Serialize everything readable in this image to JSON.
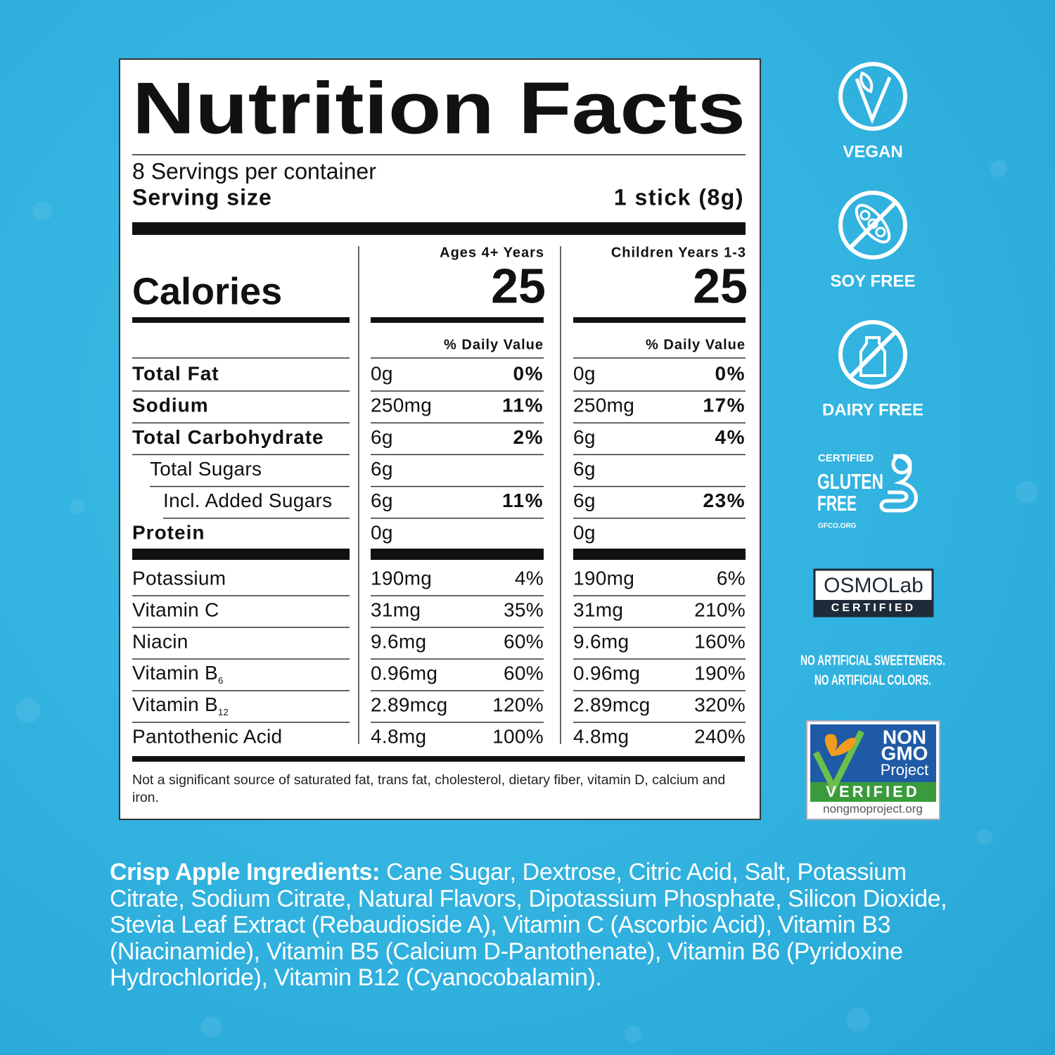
{
  "label": {
    "title": "Nutrition Facts",
    "servings": "8 Servings per container",
    "serving_size_label": "Serving size",
    "serving_size": "1 stick (8g)",
    "calories_label": "Calories",
    "columns": [
      {
        "heading": "Ages 4+ Years",
        "calories": "25",
        "dv_heading": "% Daily Value"
      },
      {
        "heading": "Children Years 1-3",
        "calories": "25",
        "dv_heading": "% Daily Value"
      }
    ],
    "main_rows": [
      {
        "name": "Total Fat",
        "level": 0,
        "amounts": [
          "0g",
          "0g"
        ],
        "daily_values": [
          "0%",
          "0%"
        ]
      },
      {
        "name": "Sodium",
        "level": 0,
        "amounts": [
          "250mg",
          "250mg"
        ],
        "daily_values": [
          "11%",
          "17%"
        ]
      },
      {
        "name": "Total Carbohydrate",
        "level": 0,
        "amounts": [
          "6g",
          "6g"
        ],
        "daily_values": [
          "2%",
          "4%"
        ]
      },
      {
        "name": "Total Sugars",
        "level": 1,
        "amounts": [
          "6g",
          "6g"
        ],
        "daily_values": null
      },
      {
        "name": "Incl. Added Sugars",
        "level": 2,
        "amounts": [
          "6g",
          "6g"
        ],
        "daily_values": [
          "11%",
          "23%"
        ]
      },
      {
        "name": "Protein",
        "level": 0,
        "amounts": [
          "0g",
          "0g"
        ],
        "daily_values": null
      }
    ],
    "vitamin_rows": [
      {
        "name": "Potassium",
        "amounts": [
          "190mg",
          "190mg"
        ],
        "daily_values": [
          "4%",
          "6%"
        ]
      },
      {
        "name": "Vitamin C",
        "amounts": [
          "31mg",
          "31mg"
        ],
        "daily_values": [
          "35%",
          "210%"
        ]
      },
      {
        "name": "Niacin",
        "amounts": [
          "9.6mg",
          "9.6mg"
        ],
        "daily_values": [
          "60%",
          "160%"
        ]
      },
      {
        "name": "Vitamin B",
        "sub": "6",
        "amounts": [
          "0.96mg",
          "0.96mg"
        ],
        "daily_values": [
          "60%",
          "190%"
        ]
      },
      {
        "name": "Vitamin B",
        "sub": "12",
        "amounts": [
          "2.89mcg",
          "2.89mcg"
        ],
        "daily_values": [
          "120%",
          "320%"
        ]
      },
      {
        "name": "Pantothenic Acid",
        "amounts": [
          "4.8mg",
          "4.8mg"
        ],
        "daily_values": [
          "100%",
          "240%"
        ]
      }
    ],
    "footnote": "Not a significant source of saturated fat, trans fat, cholesterol, dietary fiber, vitamin D, calcium and iron."
  },
  "badges": {
    "vegan": "VEGAN",
    "soy_free": "SOY FREE",
    "dairy_free": "DAIRY FREE",
    "gluten_free": {
      "top": "CERTIFIED",
      "line1": "GLUTEN",
      "line2": "FREE",
      "site": "GFCO.ORG"
    },
    "osmolab": {
      "name": "OSMOLab",
      "status": "CERTIFIED"
    },
    "claims": [
      "NO ARTIFICIAL SWEETENERS.",
      "NO ARTIFICIAL COLORS."
    ],
    "non_gmo": {
      "line1": "NON",
      "line2": "GMO",
      "line3": "Project",
      "status": "VERIFIED",
      "site": "nongmoproject.org"
    }
  },
  "ingredients": {
    "label": "Crisp Apple Ingredients:",
    "text": "Cane Sugar, Dextrose, Citric Acid, Salt, Potassium Citrate, Sodium Citrate, Natural Flavors, Dipotassium Phosphate, Silicon Dioxide, Stevia Leaf Extract (Rebaudioside A), Vitamin C (Ascorbic Acid), Vitamin B3 (Niacinamide), Vitamin B5 (Calcium D-Pantothenate), Vitamin B6 (Pyridoxine Hydrochloride), Vitamin B12 (Cyanocobalamin)."
  }
}
